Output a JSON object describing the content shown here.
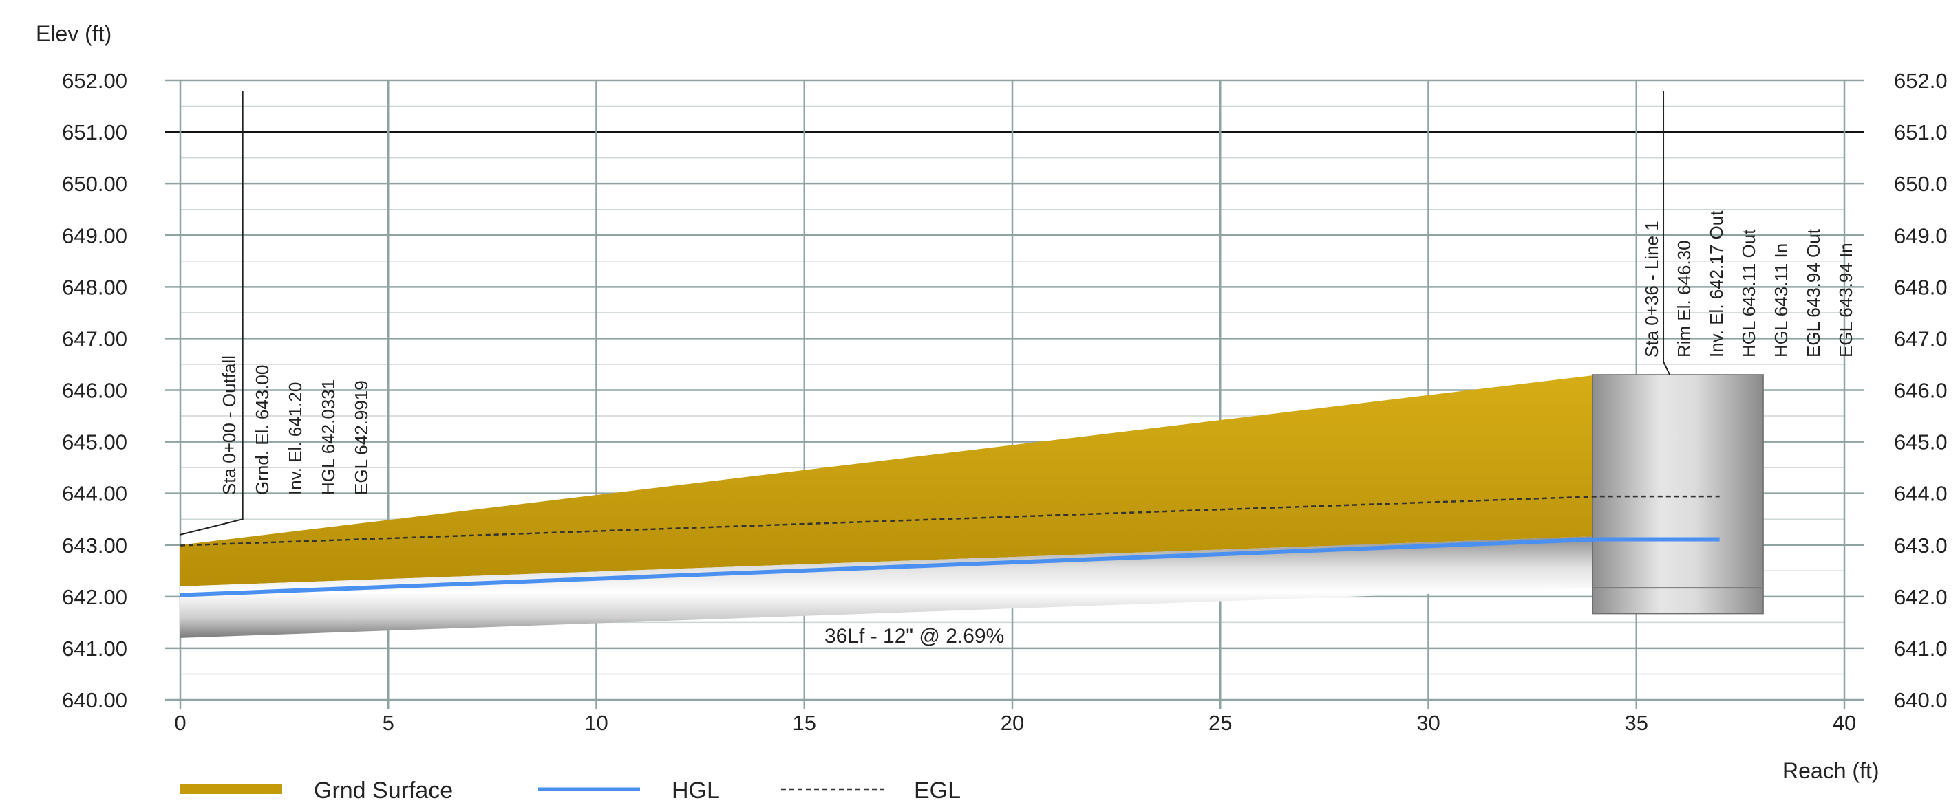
{
  "chart_data": {
    "type": "profile",
    "ylabel": "Elev (ft)",
    "xlabel": "Reach (ft)",
    "xlim": [
      0,
      40
    ],
    "ylim": [
      640,
      652
    ],
    "x_ticks": [
      "0",
      "5",
      "10",
      "15",
      "20",
      "25",
      "30",
      "35",
      "40"
    ],
    "y_ticks": [
      "640.00",
      "641.00",
      "642.00",
      "643.00",
      "644.00",
      "645.00",
      "646.00",
      "647.00",
      "648.00",
      "649.00",
      "650.00",
      "651.00",
      "652.00"
    ],
    "right_y_ticks": [
      "640.0",
      "641.0",
      "642.0",
      "643.0",
      "644.0",
      "645.0",
      "646.0",
      "647.0",
      "648.0",
      "649.0",
      "650.0",
      "651.0",
      "652.0"
    ],
    "minor_grid_step": 0.5,
    "emphasized_gridline": 651.0,
    "series": [
      {
        "name": "Grnd Surface",
        "x": [
          0,
          34.1
        ],
        "y": [
          643.0,
          646.3
        ]
      },
      {
        "name": "HGL",
        "x": [
          0,
          34.1,
          37.0
        ],
        "y": [
          642.03,
          643.11,
          643.11
        ]
      },
      {
        "name": "EGL",
        "x": [
          0,
          34.1,
          37.0
        ],
        "y": [
          642.99,
          643.94,
          643.94
        ]
      }
    ],
    "pipe": {
      "label": "36Lf - 12\" @ 2.69%",
      "x": [
        0,
        34.1
      ],
      "invert": [
        641.2,
        642.17
      ],
      "crown": [
        642.2,
        643.17
      ]
    },
    "structure": {
      "x_range": [
        34.0,
        38.0
      ],
      "bottom": 641.67,
      "top": 646.3
    },
    "annotations": [
      {
        "id": "outfall",
        "lines": [
          "Sta 0+00 - Outfall",
          "Grnd. El. 643.00",
          "Inv. El. 641.20",
          "HGL 642.0331",
          "EGL 642.9919"
        ]
      },
      {
        "id": "line1",
        "lines": [
          "Sta 0+36 - Line 1",
          "Rim El. 646.30",
          "Inv. El. 642.17 Out",
          "HGL 643.11 Out",
          "HGL 643.11 In",
          "EGL 643.94 Out",
          "EGL 643.94 In"
        ]
      }
    ],
    "legend": [
      {
        "name": "Grnd Surface",
        "color": "#c49a0b",
        "style": "solid-thick"
      },
      {
        "name": "HGL",
        "color": "#4a90f0",
        "style": "solid"
      },
      {
        "name": "EGL",
        "color": "#333333",
        "style": "dashed"
      }
    ],
    "legend_position": "bottom-left",
    "colors": {
      "ground": "#c49a0b",
      "hgl": "#4a90f0",
      "egl": "#333333",
      "pipe": "#cfcfcf",
      "structure": "#c4c4c4",
      "major_grid": "#8fa3a3",
      "minor_grid": "#cdd6d6"
    }
  }
}
